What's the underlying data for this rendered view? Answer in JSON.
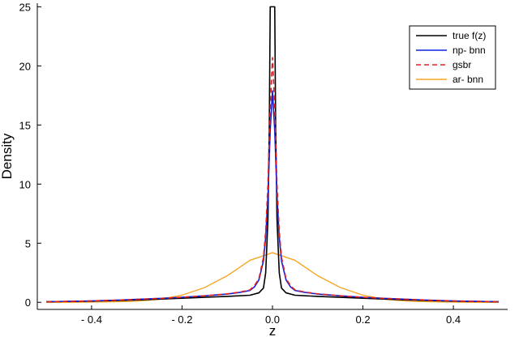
{
  "chart_data": {
    "type": "line",
    "title": "",
    "xlabel": "z",
    "ylabel": "Density",
    "xlim": [
      -0.52,
      0.52
    ],
    "ylim": [
      -0.6,
      25.3
    ],
    "xticks": [
      -0.4,
      -0.2,
      0,
      0.2,
      0.4
    ],
    "xtick_labels": [
      "- 0.4",
      "- 0.2",
      "0.0",
      "0.2",
      "0.4"
    ],
    "yticks": [
      0,
      5,
      10,
      15,
      20,
      25
    ],
    "ytick_labels": [
      "0",
      "5",
      "10",
      "15",
      "20",
      "25"
    ],
    "grid": false,
    "legend_position": "top-right",
    "series": [
      {
        "name": "true f(z)",
        "color": "#000000",
        "dash": "solid",
        "x": [
          -0.5,
          -0.4,
          -0.3,
          -0.2,
          -0.1,
          -0.05,
          -0.03,
          -0.02,
          -0.015,
          -0.01,
          -0.007,
          -0.005,
          0.005,
          0.007,
          0.01,
          0.015,
          0.02,
          0.03,
          0.05,
          0.1,
          0.2,
          0.3,
          0.4,
          0.5
        ],
        "y": [
          0.05,
          0.1,
          0.2,
          0.35,
          0.5,
          0.6,
          0.8,
          1.2,
          2.5,
          7.0,
          15.0,
          25.0,
          25.0,
          15.0,
          7.0,
          2.5,
          1.2,
          0.8,
          0.6,
          0.5,
          0.35,
          0.2,
          0.1,
          0.05
        ]
      },
      {
        "name": "np- bnn",
        "color": "#1020e0",
        "dash": "solid",
        "x": [
          -0.5,
          -0.45,
          -0.4,
          -0.35,
          -0.3,
          -0.25,
          -0.2,
          -0.15,
          -0.1,
          -0.07,
          -0.05,
          -0.04,
          -0.03,
          -0.02,
          -0.015,
          -0.01,
          -0.005,
          0.0,
          0.005,
          0.01,
          0.015,
          0.02,
          0.03,
          0.04,
          0.05,
          0.07,
          0.1,
          0.15,
          0.2,
          0.25,
          0.3,
          0.35,
          0.4,
          0.45,
          0.5
        ],
        "y": [
          0.05,
          0.08,
          0.12,
          0.18,
          0.25,
          0.33,
          0.42,
          0.55,
          0.7,
          0.85,
          1.0,
          1.3,
          1.9,
          3.5,
          5.5,
          9.0,
          14.5,
          17.9,
          14.5,
          9.0,
          5.5,
          3.5,
          1.9,
          1.3,
          1.0,
          0.85,
          0.7,
          0.55,
          0.42,
          0.33,
          0.25,
          0.18,
          0.12,
          0.08,
          0.05
        ]
      },
      {
        "name": "gsbr",
        "color": "#e02020",
        "dash": "dashed",
        "x": [
          -0.5,
          -0.45,
          -0.4,
          -0.35,
          -0.3,
          -0.25,
          -0.2,
          -0.15,
          -0.1,
          -0.07,
          -0.05,
          -0.04,
          -0.03,
          -0.02,
          -0.015,
          -0.01,
          -0.005,
          0.0,
          0.005,
          0.01,
          0.015,
          0.02,
          0.03,
          0.04,
          0.05,
          0.07,
          0.1,
          0.15,
          0.2,
          0.25,
          0.3,
          0.35,
          0.4,
          0.45,
          0.5
        ],
        "y": [
          0.05,
          0.08,
          0.12,
          0.18,
          0.25,
          0.33,
          0.42,
          0.55,
          0.72,
          0.88,
          1.05,
          1.4,
          2.0,
          3.8,
          6.0,
          10.0,
          16.5,
          20.7,
          16.5,
          10.0,
          6.0,
          3.8,
          2.0,
          1.4,
          1.05,
          0.88,
          0.72,
          0.55,
          0.42,
          0.33,
          0.25,
          0.18,
          0.12,
          0.08,
          0.05
        ]
      },
      {
        "name": "ar- bnn",
        "color": "#f5a623",
        "dash": "solid",
        "x": [
          -0.5,
          -0.45,
          -0.4,
          -0.35,
          -0.3,
          -0.25,
          -0.2,
          -0.15,
          -0.1,
          -0.05,
          0.0,
          0.05,
          0.1,
          0.15,
          0.2,
          0.25,
          0.3,
          0.35,
          0.4,
          0.45,
          0.5
        ],
        "y": [
          0.0,
          0.0,
          0.02,
          0.05,
          0.1,
          0.25,
          0.6,
          1.25,
          2.25,
          3.55,
          4.2,
          3.55,
          2.25,
          1.25,
          0.6,
          0.25,
          0.1,
          0.05,
          0.02,
          0.0,
          0.0
        ]
      }
    ]
  }
}
